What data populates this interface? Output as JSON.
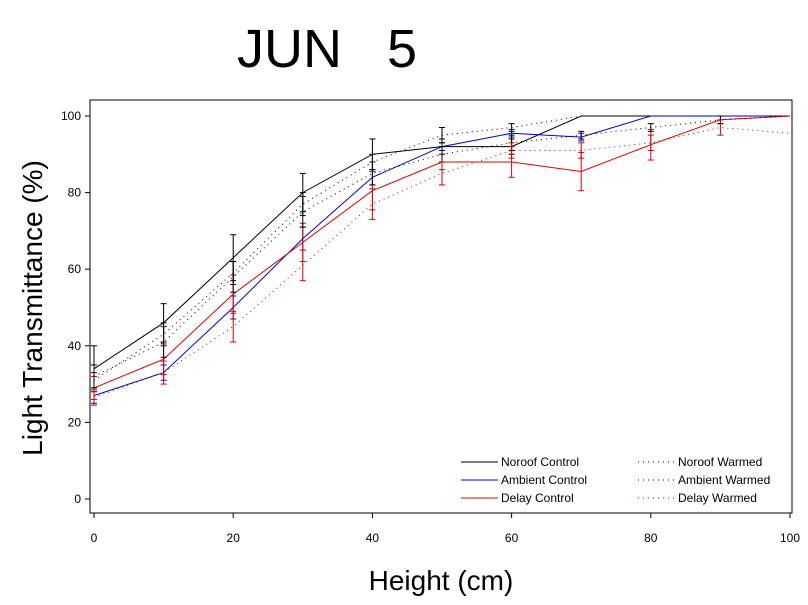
{
  "chart_data": {
    "type": "line",
    "title": "JUN   5",
    "xlabel": "Height (cm)",
    "ylabel": "Light Transmittance (%)",
    "xlim": [
      0,
      100
    ],
    "ylim": [
      0,
      100
    ],
    "xticks": [
      "0",
      "20",
      "40",
      "60",
      "80",
      "100"
    ],
    "yticks": [
      "0",
      "20",
      "40",
      "60",
      "80",
      "100"
    ],
    "grid": false,
    "legend_position": "bottom-right",
    "series": [
      {
        "name": "Noroof Control",
        "color": "#000000",
        "style": "solid",
        "x": [
          0,
          10,
          20,
          30,
          40,
          50,
          60,
          70,
          80,
          90,
          100
        ],
        "y": [
          34,
          46,
          63,
          80,
          90,
          92,
          92,
          100,
          100,
          100,
          100
        ],
        "err": [
          6,
          5,
          6,
          5,
          4,
          2,
          2,
          0,
          0,
          0,
          0
        ]
      },
      {
        "name": "Ambient Control",
        "color": "#0000cc",
        "style": "solid",
        "x": [
          0,
          10,
          20,
          30,
          40,
          50,
          60,
          70,
          80,
          90,
          100
        ],
        "y": [
          27,
          33,
          50,
          68,
          84,
          92,
          95.5,
          94.5,
          100,
          100,
          100
        ],
        "err": [
          2,
          2,
          3,
          3,
          2,
          1,
          1,
          1,
          0,
          0,
          0
        ]
      },
      {
        "name": "Delay Control",
        "color": "#dd0000",
        "style": "solid",
        "x": [
          0,
          10,
          20,
          30,
          40,
          50,
          60,
          70,
          80,
          90,
          100
        ],
        "y": [
          29,
          36.5,
          53.5,
          67,
          80.5,
          88,
          88,
          85.5,
          92.5,
          99,
          100
        ],
        "err": [
          3,
          4,
          5,
          5,
          5,
          2,
          4,
          5,
          4,
          1,
          0
        ]
      },
      {
        "name": "Noroof Warmed",
        "color": "#000000",
        "style": "dotted",
        "x": [
          0,
          10,
          20,
          30,
          40,
          50,
          60,
          70,
          80,
          90,
          100
        ],
        "y": [
          32,
          41,
          58,
          75,
          85,
          90,
          93,
          95,
          97,
          99,
          100
        ],
        "err": [
          3,
          4,
          4,
          4,
          3,
          2,
          2,
          1,
          1,
          1,
          0
        ]
      },
      {
        "name": "Ambient Warmed",
        "color": "#000000",
        "style": "dotted",
        "x": [
          0,
          10,
          20,
          30,
          40,
          50,
          60,
          70,
          80,
          90,
          100
        ],
        "y": [
          31,
          43,
          59,
          77,
          88,
          95,
          97,
          100,
          100,
          100,
          100
        ],
        "err": [
          2,
          3,
          3,
          3,
          2,
          2,
          1,
          0,
          0,
          0,
          0
        ]
      },
      {
        "name": "Delay Warmed",
        "color": "#dd0000",
        "style": "dotted",
        "x": [
          0,
          10,
          20,
          30,
          40,
          50,
          60,
          70,
          80,
          90,
          100
        ],
        "y": [
          26.5,
          33,
          45,
          61,
          77,
          85,
          91,
          91,
          93,
          97,
          95.5
        ],
        "err": [
          2,
          3,
          4,
          4,
          4,
          3,
          2,
          2,
          2,
          2,
          0
        ]
      }
    ]
  }
}
